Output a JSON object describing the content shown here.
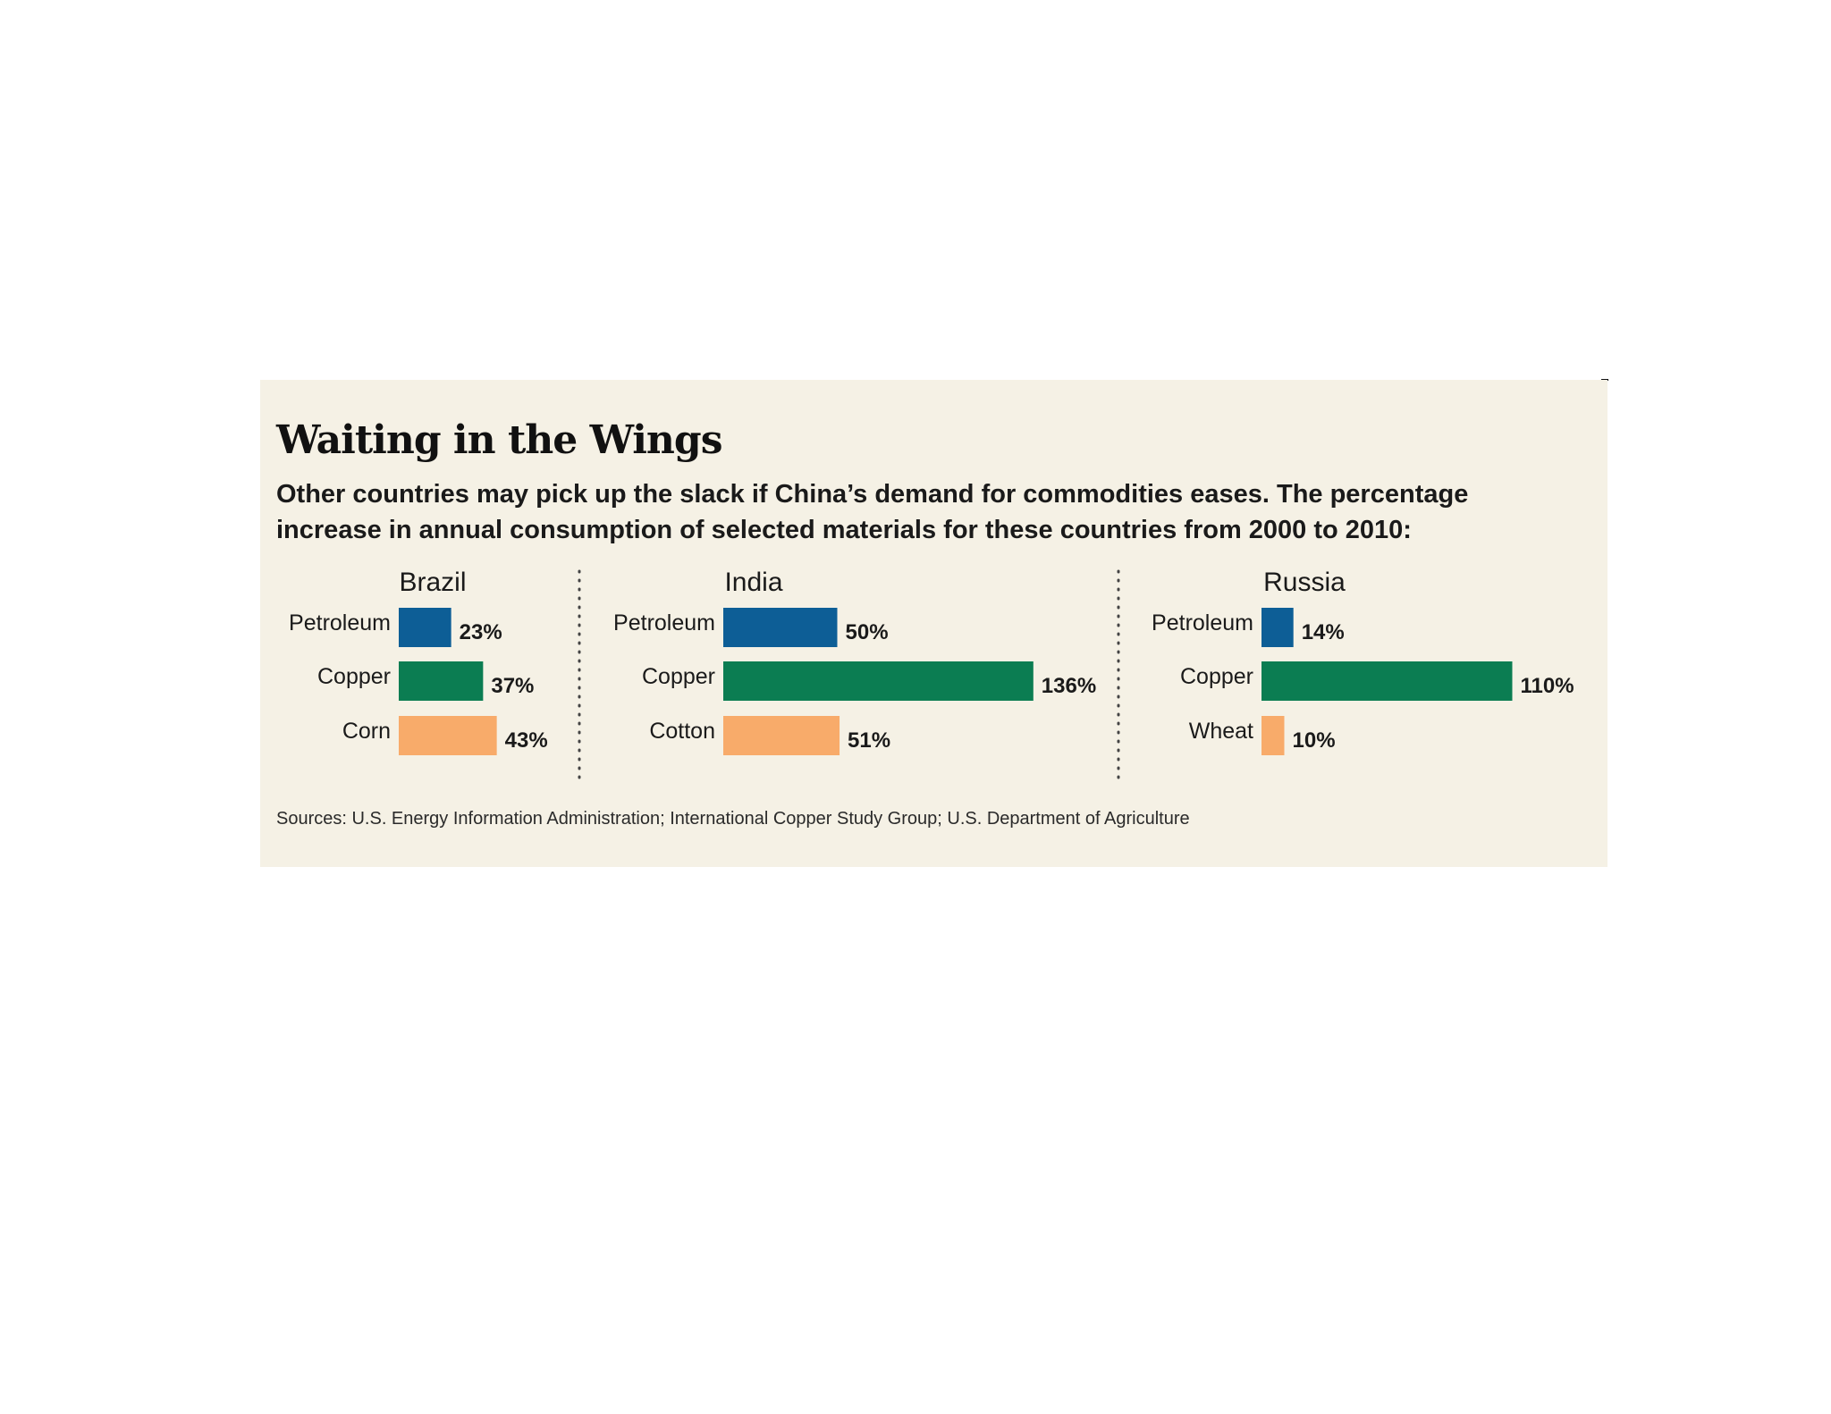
{
  "title": "Waiting in the Wings",
  "subtitle": "Other countries may pick up the slack if China’s demand for commodities eases. The percentage increase in annual consumption of selected materials for these countries from 2000 to 2010:",
  "source": "Sources: U.S. Energy Information Administration; International Copper Study Group; U.S. Department of Agriculture",
  "colors": {
    "petroleum": "#0d5e96",
    "copper": "#0b7d52",
    "third": "#f8ab6a",
    "background": "#f5f1e5"
  },
  "chart_data": [
    {
      "type": "bar",
      "title": "Brazil",
      "categories": [
        "Petroleum",
        "Copper",
        "Corn"
      ],
      "values": [
        23,
        37,
        43
      ],
      "labels": [
        "23%",
        "37%",
        "43%"
      ],
      "colors": [
        "#0d5e96",
        "#0b7d52",
        "#f8ab6a"
      ]
    },
    {
      "type": "bar",
      "title": "India",
      "categories": [
        "Petroleum",
        "Copper",
        "Cotton"
      ],
      "values": [
        50,
        136,
        51
      ],
      "labels": [
        "50%",
        "136%",
        "51%"
      ],
      "colors": [
        "#0d5e96",
        "#0b7d52",
        "#f8ab6a"
      ]
    },
    {
      "type": "bar",
      "title": "Russia",
      "categories": [
        "Petroleum",
        "Copper",
        "Wheat"
      ],
      "values": [
        14,
        110,
        10
      ],
      "labels": [
        "14%",
        "110%",
        "10%"
      ],
      "colors": [
        "#0d5e96",
        "#0b7d52",
        "#f8ab6a"
      ]
    }
  ]
}
